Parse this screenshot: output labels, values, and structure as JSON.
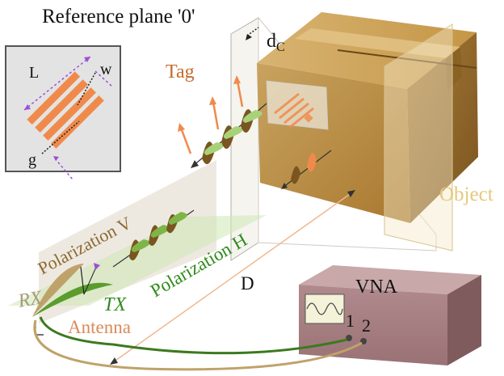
{
  "labels": {
    "reference_plane": "Reference plane '0'",
    "distance_c": "d",
    "distance_c_sub": "C",
    "tag": "Tag",
    "object": "Object",
    "polarization_v": "Polarization V",
    "polarization_h": "Polarization H",
    "distance": "D",
    "rx": "RX",
    "tx": "TX",
    "antenna": "Antenna",
    "vna": "VNA",
    "port_1": "1",
    "port_2": "2",
    "inset_length": "L",
    "inset_width": "w",
    "inset_gap": "g"
  },
  "colors": {
    "orange": "#f08a4b",
    "green": "#3b8a1f",
    "brown": "#8b6a30",
    "box": "#c89a55",
    "vna": "#a67f82"
  }
}
